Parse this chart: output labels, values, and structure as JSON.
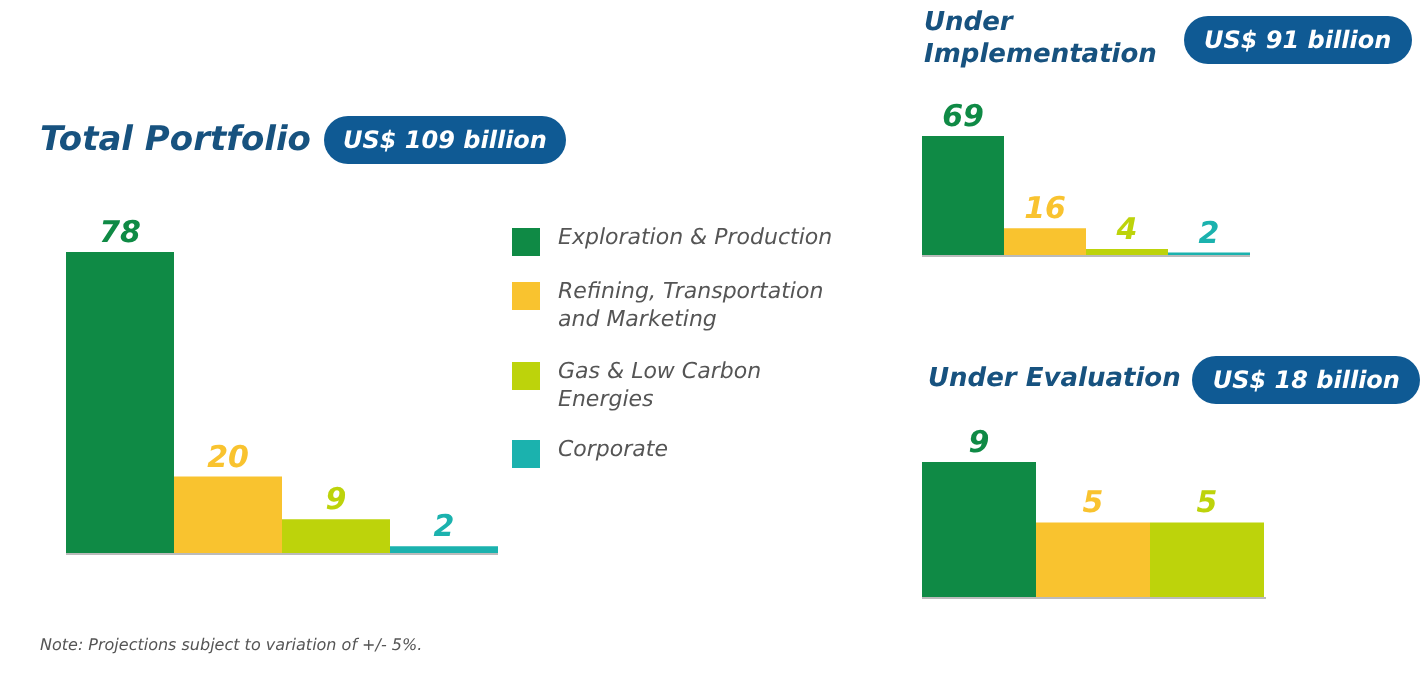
{
  "chart_data": [
    {
      "type": "bar",
      "title": "Total Portfolio",
      "subtitle": "US$ 109 billion",
      "categories": [
        null
      ],
      "series": [
        {
          "name": "Exploration & Production",
          "color": "#0f8a45",
          "values": [
            78
          ]
        },
        {
          "name": "Refining, Transportation and Marketing",
          "color": "#f9c32f",
          "values": [
            20
          ]
        },
        {
          "name": "Gas & Low Carbon Energies",
          "color": "#bdd30b",
          "values": [
            9
          ]
        },
        {
          "name": "Corporate",
          "color": "#1bb2ae",
          "values": [
            2
          ]
        }
      ],
      "data_labels": true,
      "legend": "right",
      "grid": false,
      "annotations": [
        "Note: Projections subject to variation of +/- 5%."
      ]
    },
    {
      "type": "bar",
      "title": "Under Implementation",
      "subtitle": "US$ 91 billion",
      "categories": [
        null
      ],
      "series": [
        {
          "color": "#0f8a45",
          "values": [
            69
          ]
        },
        {
          "color": "#f9c32f",
          "values": [
            16
          ]
        },
        {
          "color": "#bdd30b",
          "values": [
            4
          ]
        },
        {
          "color": "#1bb2ae",
          "values": [
            2
          ]
        }
      ],
      "data_labels": true,
      "grid": false
    },
    {
      "type": "bar",
      "title": "Under Evaluation",
      "subtitle": "US$ 18 billion",
      "categories": [
        null
      ],
      "series": [
        {
          "color": "#0f8a45",
          "values": [
            9
          ]
        },
        {
          "color": "#f9c32f",
          "values": [
            5
          ]
        },
        {
          "color": "#bdd30b",
          "values": [
            5
          ]
        }
      ],
      "data_labels": true,
      "grid": false
    }
  ]
}
